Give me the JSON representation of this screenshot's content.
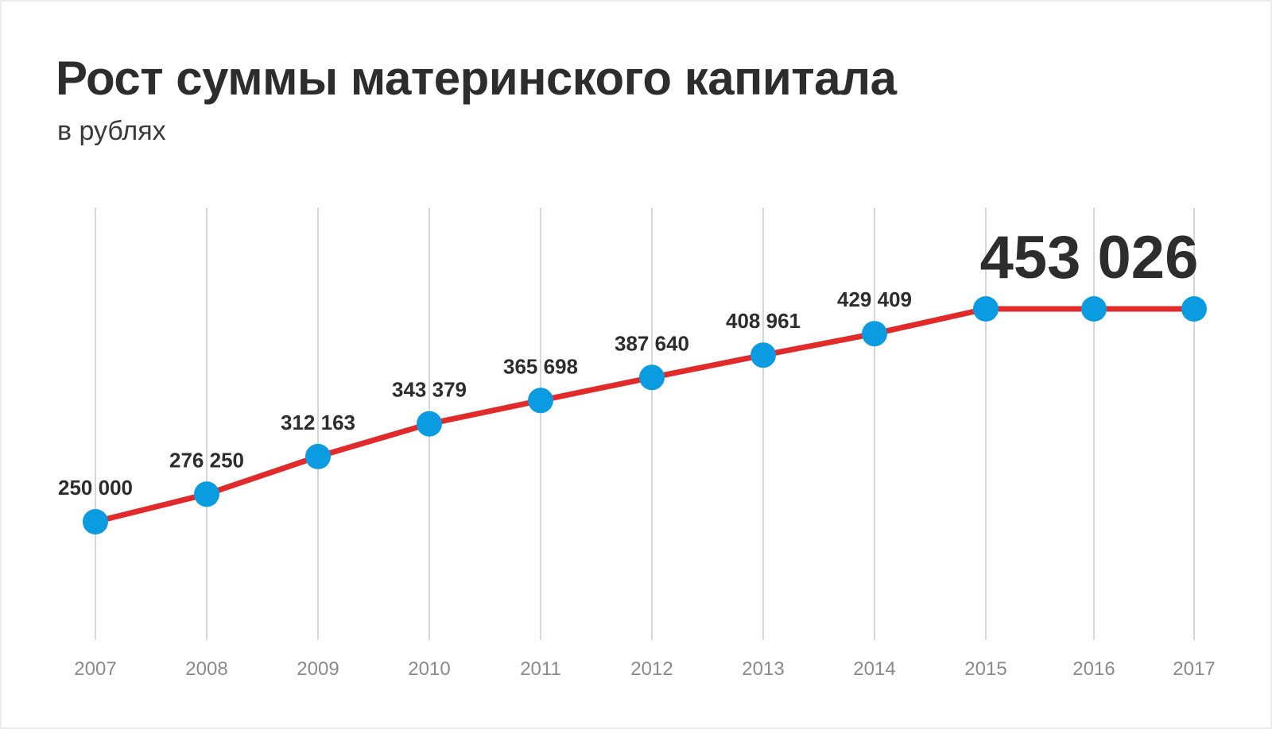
{
  "header": {
    "title": "Рост суммы материнского капитала",
    "subtitle": "в рублях"
  },
  "colors": {
    "line": "#e12a2a",
    "marker": "#0a9be0",
    "grid": "#d6d6d6",
    "text": "#2d2d2d",
    "tick": "#8a8a8a"
  },
  "chart_data": {
    "type": "line",
    "title": "Рост суммы материнского капитала",
    "subtitle": "в рублях",
    "xlabel": "",
    "ylabel": "",
    "grid": "vertical",
    "legend": "none",
    "categories": [
      "2007",
      "2008",
      "2009",
      "2010",
      "2011",
      "2012",
      "2013",
      "2014",
      "2015",
      "2016",
      "2017"
    ],
    "series": [
      {
        "values": [
          250000,
          276250,
          312163,
          343379,
          365698,
          387640,
          408961,
          429409,
          453026,
          453026,
          453026
        ]
      }
    ],
    "data_labels": [
      "250 000",
      "276 250",
      "312 163",
      "343 379",
      "365 698",
      "387 640",
      "408 961",
      "429 409",
      "453 026",
      "",
      ""
    ],
    "ylim": [
      200000,
      480000
    ]
  }
}
